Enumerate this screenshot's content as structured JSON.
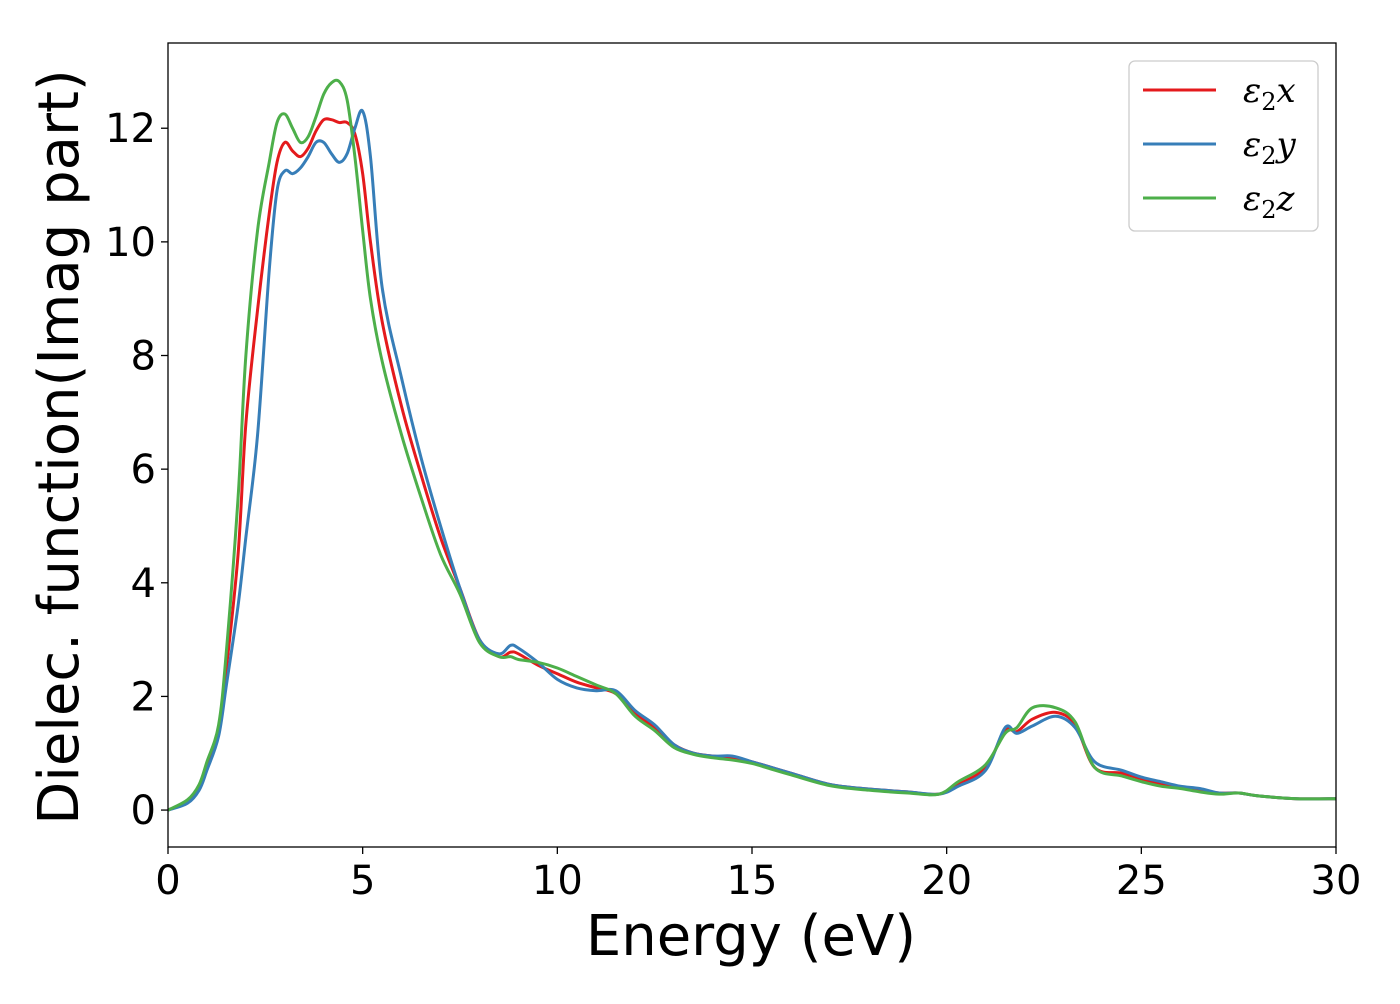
{
  "chart_data": {
    "type": "line",
    "title": "",
    "xlabel": "Energy (eV)",
    "ylabel": "Dielec. function(Imag part)",
    "xlim": [
      0,
      30
    ],
    "ylim": [
      -0.65,
      13.5
    ],
    "x_ticks": [
      0,
      5,
      10,
      15,
      20,
      25,
      30
    ],
    "y_ticks": [
      0,
      2,
      4,
      6,
      8,
      10,
      12
    ],
    "grid": false,
    "legend_position": "top-right",
    "series": [
      {
        "name": "ε2x",
        "legend": {
          "base": "ε",
          "sub": "2",
          "suffix": "x"
        },
        "color": "#e41a1c",
        "points": [
          [
            0,
            0
          ],
          [
            0.5,
            0.15
          ],
          [
            0.8,
            0.4
          ],
          [
            1.0,
            0.8
          ],
          [
            1.3,
            1.4
          ],
          [
            1.5,
            2.5
          ],
          [
            1.8,
            4.5
          ],
          [
            2.0,
            6.8
          ],
          [
            2.3,
            8.8
          ],
          [
            2.6,
            10.5
          ],
          [
            2.8,
            11.4
          ],
          [
            3.0,
            11.75
          ],
          [
            3.2,
            11.6
          ],
          [
            3.4,
            11.5
          ],
          [
            3.6,
            11.65
          ],
          [
            3.8,
            11.95
          ],
          [
            4.0,
            12.15
          ],
          [
            4.2,
            12.15
          ],
          [
            4.4,
            12.1
          ],
          [
            4.6,
            12.1
          ],
          [
            4.8,
            11.9
          ],
          [
            5.0,
            11.2
          ],
          [
            5.2,
            10.0
          ],
          [
            5.5,
            8.6
          ],
          [
            6.0,
            7.1
          ],
          [
            6.5,
            5.9
          ],
          [
            7.0,
            4.8
          ],
          [
            7.5,
            3.9
          ],
          [
            8.0,
            3.0
          ],
          [
            8.5,
            2.7
          ],
          [
            8.8,
            2.78
          ],
          [
            9.0,
            2.75
          ],
          [
            9.5,
            2.55
          ],
          [
            10.0,
            2.4
          ],
          [
            10.5,
            2.25
          ],
          [
            11.0,
            2.15
          ],
          [
            11.5,
            2.05
          ],
          [
            12.0,
            1.7
          ],
          [
            12.5,
            1.45
          ],
          [
            13.0,
            1.15
          ],
          [
            13.5,
            1.0
          ],
          [
            14.0,
            0.95
          ],
          [
            14.5,
            0.92
          ],
          [
            15.0,
            0.85
          ],
          [
            15.5,
            0.75
          ],
          [
            16.0,
            0.65
          ],
          [
            17.0,
            0.45
          ],
          [
            18.0,
            0.37
          ],
          [
            19.0,
            0.32
          ],
          [
            19.8,
            0.28
          ],
          [
            20.3,
            0.45
          ],
          [
            21.0,
            0.75
          ],
          [
            21.5,
            1.4
          ],
          [
            21.8,
            1.38
          ],
          [
            22.2,
            1.6
          ],
          [
            22.8,
            1.72
          ],
          [
            23.3,
            1.5
          ],
          [
            23.8,
            0.75
          ],
          [
            24.5,
            0.65
          ],
          [
            25.0,
            0.55
          ],
          [
            25.5,
            0.45
          ],
          [
            26.0,
            0.4
          ],
          [
            26.5,
            0.35
          ],
          [
            27.0,
            0.3
          ],
          [
            27.5,
            0.3
          ],
          [
            28.0,
            0.25
          ],
          [
            29.0,
            0.2
          ],
          [
            30.0,
            0.2
          ]
        ]
      },
      {
        "name": "ε2y",
        "legend": {
          "base": "ε",
          "sub": "2",
          "suffix": "y"
        },
        "color": "#377eb8",
        "points": [
          [
            0,
            0
          ],
          [
            0.5,
            0.12
          ],
          [
            0.8,
            0.35
          ],
          [
            1.0,
            0.7
          ],
          [
            1.3,
            1.3
          ],
          [
            1.5,
            2.2
          ],
          [
            1.8,
            3.6
          ],
          [
            2.0,
            4.8
          ],
          [
            2.3,
            6.6
          ],
          [
            2.6,
            9.5
          ],
          [
            2.8,
            10.9
          ],
          [
            3.0,
            11.25
          ],
          [
            3.2,
            11.2
          ],
          [
            3.4,
            11.3
          ],
          [
            3.6,
            11.5
          ],
          [
            3.8,
            11.75
          ],
          [
            4.0,
            11.75
          ],
          [
            4.2,
            11.55
          ],
          [
            4.4,
            11.4
          ],
          [
            4.6,
            11.55
          ],
          [
            4.8,
            12.0
          ],
          [
            5.0,
            12.3
          ],
          [
            5.2,
            11.5
          ],
          [
            5.5,
            9.2
          ],
          [
            6.0,
            7.6
          ],
          [
            6.5,
            6.2
          ],
          [
            7.0,
            5.0
          ],
          [
            7.5,
            3.9
          ],
          [
            8.0,
            3.0
          ],
          [
            8.5,
            2.75
          ],
          [
            8.8,
            2.9
          ],
          [
            9.0,
            2.85
          ],
          [
            9.5,
            2.6
          ],
          [
            10.0,
            2.3
          ],
          [
            10.5,
            2.15
          ],
          [
            11.0,
            2.1
          ],
          [
            11.5,
            2.1
          ],
          [
            12.0,
            1.75
          ],
          [
            12.5,
            1.5
          ],
          [
            13.0,
            1.15
          ],
          [
            13.5,
            1.0
          ],
          [
            14.0,
            0.95
          ],
          [
            14.5,
            0.95
          ],
          [
            15.0,
            0.85
          ],
          [
            15.5,
            0.75
          ],
          [
            16.0,
            0.65
          ],
          [
            17.0,
            0.45
          ],
          [
            18.0,
            0.37
          ],
          [
            19.0,
            0.32
          ],
          [
            19.8,
            0.28
          ],
          [
            20.3,
            0.42
          ],
          [
            21.0,
            0.7
          ],
          [
            21.5,
            1.45
          ],
          [
            21.8,
            1.35
          ],
          [
            22.2,
            1.48
          ],
          [
            22.8,
            1.65
          ],
          [
            23.3,
            1.45
          ],
          [
            23.8,
            0.85
          ],
          [
            24.5,
            0.7
          ],
          [
            25.0,
            0.58
          ],
          [
            25.5,
            0.5
          ],
          [
            26.0,
            0.42
          ],
          [
            26.5,
            0.38
          ],
          [
            27.0,
            0.3
          ],
          [
            27.5,
            0.3
          ],
          [
            28.0,
            0.25
          ],
          [
            29.0,
            0.2
          ],
          [
            30.0,
            0.2
          ]
        ]
      },
      {
        "name": "ε2z",
        "legend": {
          "base": "ε",
          "sub": "2",
          "suffix": "z"
        },
        "color": "#4daf4a",
        "points": [
          [
            0,
            0
          ],
          [
            0.5,
            0.18
          ],
          [
            0.8,
            0.45
          ],
          [
            1.0,
            0.85
          ],
          [
            1.3,
            1.5
          ],
          [
            1.5,
            2.8
          ],
          [
            1.8,
            5.5
          ],
          [
            2.0,
            8.0
          ],
          [
            2.3,
            10.2
          ],
          [
            2.6,
            11.4
          ],
          [
            2.8,
            12.1
          ],
          [
            3.0,
            12.25
          ],
          [
            3.2,
            12.0
          ],
          [
            3.4,
            11.75
          ],
          [
            3.6,
            11.85
          ],
          [
            3.8,
            12.2
          ],
          [
            4.0,
            12.6
          ],
          [
            4.2,
            12.8
          ],
          [
            4.4,
            12.82
          ],
          [
            4.6,
            12.5
          ],
          [
            4.8,
            11.5
          ],
          [
            5.0,
            10.2
          ],
          [
            5.2,
            9.0
          ],
          [
            5.5,
            7.9
          ],
          [
            6.0,
            6.6
          ],
          [
            6.5,
            5.5
          ],
          [
            7.0,
            4.5
          ],
          [
            7.5,
            3.8
          ],
          [
            8.0,
            2.95
          ],
          [
            8.5,
            2.7
          ],
          [
            8.8,
            2.7
          ],
          [
            9.0,
            2.65
          ],
          [
            9.5,
            2.6
          ],
          [
            10.0,
            2.5
          ],
          [
            10.5,
            2.35
          ],
          [
            11.0,
            2.2
          ],
          [
            11.5,
            2.05
          ],
          [
            12.0,
            1.65
          ],
          [
            12.5,
            1.4
          ],
          [
            13.0,
            1.1
          ],
          [
            13.5,
            0.98
          ],
          [
            14.0,
            0.92
          ],
          [
            14.5,
            0.88
          ],
          [
            15.0,
            0.82
          ],
          [
            15.5,
            0.72
          ],
          [
            16.0,
            0.62
          ],
          [
            17.0,
            0.43
          ],
          [
            18.0,
            0.35
          ],
          [
            19.0,
            0.3
          ],
          [
            19.8,
            0.28
          ],
          [
            20.3,
            0.5
          ],
          [
            21.0,
            0.8
          ],
          [
            21.5,
            1.35
          ],
          [
            21.8,
            1.45
          ],
          [
            22.2,
            1.8
          ],
          [
            22.8,
            1.8
          ],
          [
            23.3,
            1.55
          ],
          [
            23.8,
            0.75
          ],
          [
            24.5,
            0.6
          ],
          [
            25.0,
            0.5
          ],
          [
            25.5,
            0.42
          ],
          [
            26.0,
            0.38
          ],
          [
            26.5,
            0.32
          ],
          [
            27.0,
            0.28
          ],
          [
            27.5,
            0.3
          ],
          [
            28.0,
            0.25
          ],
          [
            29.0,
            0.2
          ],
          [
            30.0,
            0.2
          ]
        ]
      }
    ]
  }
}
